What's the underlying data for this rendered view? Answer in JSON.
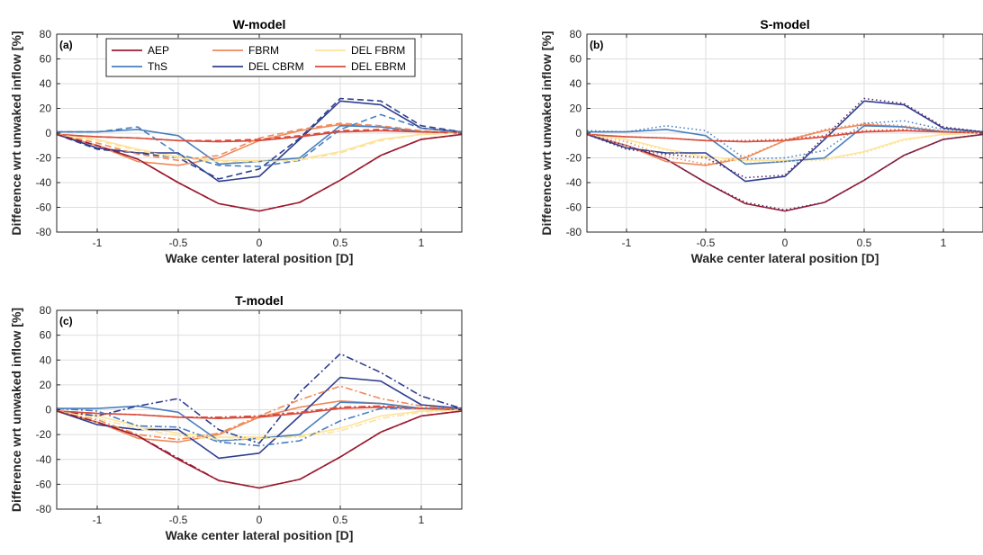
{
  "chart_data": [
    {
      "type": "line",
      "title": "W-model",
      "panel_label": "(a)",
      "xlabel": "Wake center lateral position [D]",
      "ylabel": "Difference wrt unwaked inflow [%]",
      "xlim": [
        -1.25,
        1.25
      ],
      "ylim": [
        -80,
        80
      ],
      "xticks": [
        -1,
        -0.5,
        0,
        0.5,
        1
      ],
      "xtick_labels": [
        "-1",
        "-0.5",
        "0",
        "0.5",
        "1"
      ],
      "yticks": [
        -80,
        -60,
        -40,
        -20,
        0,
        20,
        40,
        60,
        80
      ],
      "ytick_labels": [
        "-80",
        "-60",
        "-40",
        "-20",
        "0",
        "20",
        "40",
        "60",
        "80"
      ],
      "grid": true,
      "legend": {
        "placement": "top",
        "entries": [
          {
            "label": "AEP",
            "color": "#9b1b30"
          },
          {
            "label": "FBRM",
            "color": "#ef8a5a"
          },
          {
            "label": "DEL FBRM",
            "color": "#fde39a"
          },
          {
            "label": "ThS",
            "color": "#4a7fbf"
          },
          {
            "label": "DEL CBRM",
            "color": "#2f3f8f"
          },
          {
            "label": "DEL EBRM",
            "color": "#d94a3a"
          }
        ]
      },
      "x": [
        -1.25,
        -1,
        -0.75,
        -0.5,
        -0.25,
        0,
        0.25,
        0.5,
        0.75,
        1,
        1.25
      ],
      "series": [
        {
          "name": "AEP",
          "color": "#9b1b30",
          "style": "solid",
          "values": [
            -1,
            -10,
            -21,
            -40,
            -57,
            -63,
            -56,
            -38,
            -18,
            -5,
            -1
          ]
        },
        {
          "name": "FBRM",
          "color": "#ef8a5a",
          "style": "solid",
          "values": [
            -1,
            -10,
            -23,
            -26,
            -20,
            -6,
            2,
            7,
            5,
            1,
            0
          ]
        },
        {
          "name": "DEL FBRM",
          "color": "#fde39a",
          "style": "solid",
          "values": [
            -1,
            -5,
            -13,
            -19,
            -22,
            -22,
            -21,
            -15,
            -5,
            -1,
            0
          ]
        },
        {
          "name": "ThS",
          "color": "#4a7fbf",
          "style": "solid",
          "values": [
            1,
            1,
            3,
            -2,
            -25,
            -23,
            -20,
            6,
            5,
            1,
            1
          ]
        },
        {
          "name": "DEL CBRM",
          "color": "#2f3f8f",
          "style": "solid",
          "values": [
            -1,
            -12,
            -16,
            -16,
            -39,
            -35,
            -5,
            26,
            23,
            4,
            1
          ]
        },
        {
          "name": "DEL EBRM",
          "color": "#d94a3a",
          "style": "solid",
          "values": [
            -1,
            -3,
            -4,
            -6,
            -7,
            -6,
            -3,
            1,
            2,
            1,
            0
          ]
        },
        {
          "name": "",
          "color": "#2f3f8f",
          "style": "dashed",
          "values": [
            -1,
            -13,
            -16,
            -20,
            -37,
            -29,
            -4,
            28,
            26,
            6,
            1
          ]
        },
        {
          "name": "",
          "color": "#4a7fbf",
          "style": "dashed",
          "values": [
            1,
            1,
            5,
            -17,
            -26,
            -27,
            -22,
            3,
            15,
            4,
            1
          ]
        },
        {
          "name": "",
          "color": "#ef8a5a",
          "style": "dashed",
          "values": [
            -1,
            -8,
            -17,
            -22,
            -18,
            -4,
            3,
            8,
            6,
            2,
            0
          ]
        },
        {
          "name": "",
          "color": "#d94a3a",
          "style": "dashed",
          "values": [
            -1,
            -3,
            -4,
            -6,
            -6,
            -5,
            -2,
            2,
            3,
            1,
            0
          ]
        },
        {
          "name": "",
          "color": "#fde39a",
          "style": "dashed",
          "values": [
            -1,
            -6,
            -14,
            -20,
            -23,
            -23,
            -22,
            -16,
            -6,
            -1,
            0
          ]
        },
        {
          "name": "",
          "color": "#9b1b30",
          "style": "dashed",
          "values": [
            -1,
            -10,
            -21,
            -40,
            -57,
            -63,
            -56,
            -38,
            -18,
            -5,
            -1
          ]
        }
      ]
    },
    {
      "type": "line",
      "title": "S-model",
      "panel_label": "(b)",
      "xlabel": "Wake center lateral position [D]",
      "ylabel": "Difference wrt unwaked inflow [%]",
      "xlim": [
        -1.25,
        1.25
      ],
      "ylim": [
        -80,
        80
      ],
      "xticks": [
        -1,
        -0.5,
        0,
        0.5,
        1
      ],
      "xtick_labels": [
        "-1",
        "-0.5",
        "0",
        "0.5",
        "1"
      ],
      "yticks": [
        -80,
        -60,
        -40,
        -20,
        0,
        20,
        40,
        60,
        80
      ],
      "ytick_labels": [
        "-80",
        "-60",
        "-40",
        "-20",
        "0",
        "20",
        "40",
        "60",
        "80"
      ],
      "grid": true,
      "x": [
        -1.25,
        -1,
        -0.75,
        -0.5,
        -0.25,
        0,
        0.25,
        0.5,
        0.75,
        1,
        1.25
      ],
      "series": [
        {
          "name": "",
          "color": "#9b1b30",
          "style": "solid",
          "values": [
            -1,
            -10,
            -21,
            -40,
            -57,
            -63,
            -56,
            -38,
            -18,
            -5,
            -1
          ]
        },
        {
          "name": "",
          "color": "#ef8a5a",
          "style": "solid",
          "values": [
            -1,
            -10,
            -23,
            -26,
            -20,
            -6,
            2,
            7,
            5,
            1,
            0
          ]
        },
        {
          "name": "",
          "color": "#fde39a",
          "style": "solid",
          "values": [
            -1,
            -5,
            -13,
            -19,
            -22,
            -22,
            -21,
            -15,
            -5,
            -1,
            0
          ]
        },
        {
          "name": "",
          "color": "#4a7fbf",
          "style": "solid",
          "values": [
            1,
            1,
            3,
            -2,
            -25,
            -23,
            -20,
            6,
            5,
            1,
            1
          ]
        },
        {
          "name": "",
          "color": "#2f3f8f",
          "style": "solid",
          "values": [
            -1,
            -12,
            -16,
            -16,
            -39,
            -35,
            -5,
            26,
            23,
            4,
            1
          ]
        },
        {
          "name": "",
          "color": "#d94a3a",
          "style": "solid",
          "values": [
            -1,
            -3,
            -4,
            -6,
            -7,
            -6,
            -3,
            1,
            2,
            1,
            0
          ]
        },
        {
          "name": "",
          "color": "#5a2a6a",
          "style": "dotted",
          "values": [
            -1,
            -13,
            -17,
            -20,
            -36,
            -34,
            -3,
            28,
            24,
            5,
            1
          ]
        },
        {
          "name": "",
          "color": "#4a7fbf",
          "style": "dotted",
          "values": [
            2,
            1,
            6,
            2,
            -21,
            -20,
            -14,
            8,
            10,
            3,
            1
          ]
        },
        {
          "name": "",
          "color": "#ef8a5a",
          "style": "dotted",
          "values": [
            -1,
            -7,
            -19,
            -25,
            -19,
            -6,
            3,
            8,
            6,
            2,
            0
          ]
        },
        {
          "name": "",
          "color": "#d94a3a",
          "style": "dotted",
          "values": [
            -1,
            -3,
            -4,
            -6,
            -6,
            -5,
            -2,
            2,
            3,
            1,
            0
          ]
        },
        {
          "name": "",
          "color": "#fde39a",
          "style": "dotted",
          "values": [
            -1,
            -6,
            -14,
            -21,
            -23,
            -23,
            -22,
            -16,
            -6,
            -1,
            0
          ]
        },
        {
          "name": "",
          "color": "#5a2a6a",
          "style": "dotted",
          "values": [
            -1,
            -10,
            -21,
            -40,
            -56,
            -62,
            -56,
            -38,
            -18,
            -5,
            -1
          ]
        }
      ]
    },
    {
      "type": "line",
      "title": "T-model",
      "panel_label": "(c)",
      "xlabel": "Wake center lateral position [D]",
      "ylabel": "Difference wrt unwaked inflow [%]",
      "xlim": [
        -1.25,
        1.25
      ],
      "ylim": [
        -80,
        80
      ],
      "xticks": [
        -1,
        -0.5,
        0,
        0.5,
        1
      ],
      "xtick_labels": [
        "-1",
        "-0.5",
        "0",
        "0.5",
        "1"
      ],
      "yticks": [
        -80,
        -60,
        -40,
        -20,
        0,
        20,
        40,
        60,
        80
      ],
      "ytick_labels": [
        "-80",
        "-60",
        "-40",
        "-20",
        "0",
        "20",
        "40",
        "60",
        "80"
      ],
      "grid": true,
      "x": [
        -1.25,
        -1,
        -0.75,
        -0.5,
        -0.25,
        0,
        0.25,
        0.5,
        0.75,
        1,
        1.25
      ],
      "series": [
        {
          "name": "",
          "color": "#9b1b30",
          "style": "solid",
          "values": [
            -1,
            -10,
            -21,
            -40,
            -57,
            -63,
            -56,
            -38,
            -18,
            -5,
            -1
          ]
        },
        {
          "name": "",
          "color": "#ef8a5a",
          "style": "solid",
          "values": [
            -1,
            -10,
            -23,
            -26,
            -20,
            -6,
            2,
            7,
            5,
            1,
            0
          ]
        },
        {
          "name": "",
          "color": "#fde39a",
          "style": "solid",
          "values": [
            -1,
            -5,
            -13,
            -19,
            -22,
            -22,
            -21,
            -15,
            -5,
            -1,
            0
          ]
        },
        {
          "name": "",
          "color": "#4a7fbf",
          "style": "solid",
          "values": [
            1,
            1,
            3,
            -2,
            -25,
            -23,
            -20,
            6,
            5,
            1,
            1
          ]
        },
        {
          "name": "",
          "color": "#2f3f8f",
          "style": "solid",
          "values": [
            -1,
            -12,
            -16,
            -16,
            -39,
            -35,
            -5,
            26,
            23,
            4,
            1
          ]
        },
        {
          "name": "",
          "color": "#d94a3a",
          "style": "solid",
          "values": [
            -1,
            -3,
            -4,
            -6,
            -7,
            -6,
            -3,
            1,
            2,
            1,
            0
          ]
        },
        {
          "name": "",
          "color": "#2f3f8f",
          "style": "dashdot",
          "values": [
            -1,
            -5,
            3,
            9,
            -16,
            -27,
            14,
            45,
            30,
            11,
            1
          ]
        },
        {
          "name": "",
          "color": "#4a7fbf",
          "style": "dashdot",
          "values": [
            1,
            -1,
            -13,
            -14,
            -26,
            -29,
            -25,
            -9,
            1,
            1,
            1
          ]
        },
        {
          "name": "",
          "color": "#ef8a5a",
          "style": "dashdot",
          "values": [
            -1,
            -8,
            -20,
            -24,
            -19,
            -5,
            8,
            19,
            9,
            3,
            0
          ]
        },
        {
          "name": "",
          "color": "#d94a3a",
          "style": "dashdot",
          "values": [
            -1,
            -3,
            -4,
            -6,
            -6,
            -5,
            -2,
            2,
            3,
            1,
            0
          ]
        },
        {
          "name": "",
          "color": "#fde39a",
          "style": "dashdot",
          "values": [
            -1,
            -7,
            -15,
            -21,
            -24,
            -23,
            -22,
            -17,
            -7,
            -2,
            0
          ]
        },
        {
          "name": "",
          "color": "#9b1b30",
          "style": "dashdot",
          "values": [
            -1,
            -10,
            -21,
            -39,
            -57,
            -63,
            -56,
            -38,
            -18,
            -5,
            -1
          ]
        }
      ]
    }
  ]
}
